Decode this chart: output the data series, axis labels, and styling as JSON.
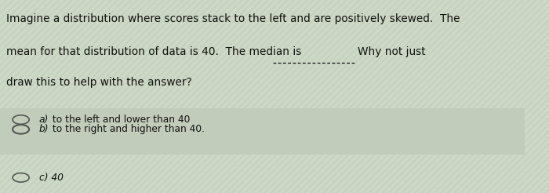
{
  "background_color": "#cdd8c6",
  "highlight_color": "#c2ccbb",
  "text_color": "#111111",
  "line1": "Imagine a distribution where scores stack to the left and are positively skewed.  The",
  "line2_part1": "mean for that distribution of data is 40.  The median is",
  "line2_part2": "Why not just",
  "line3": "draw this to help with the answer?",
  "option_a_label": "a)",
  "option_a_text": " to the left and lower than 40",
  "option_b_label": "b)",
  "option_b_text": " to the right and higher than 40.",
  "option_c_label": "c) 40",
  "font_size_main": 9.8,
  "font_size_option": 8.8,
  "title_font_size": 10.0
}
